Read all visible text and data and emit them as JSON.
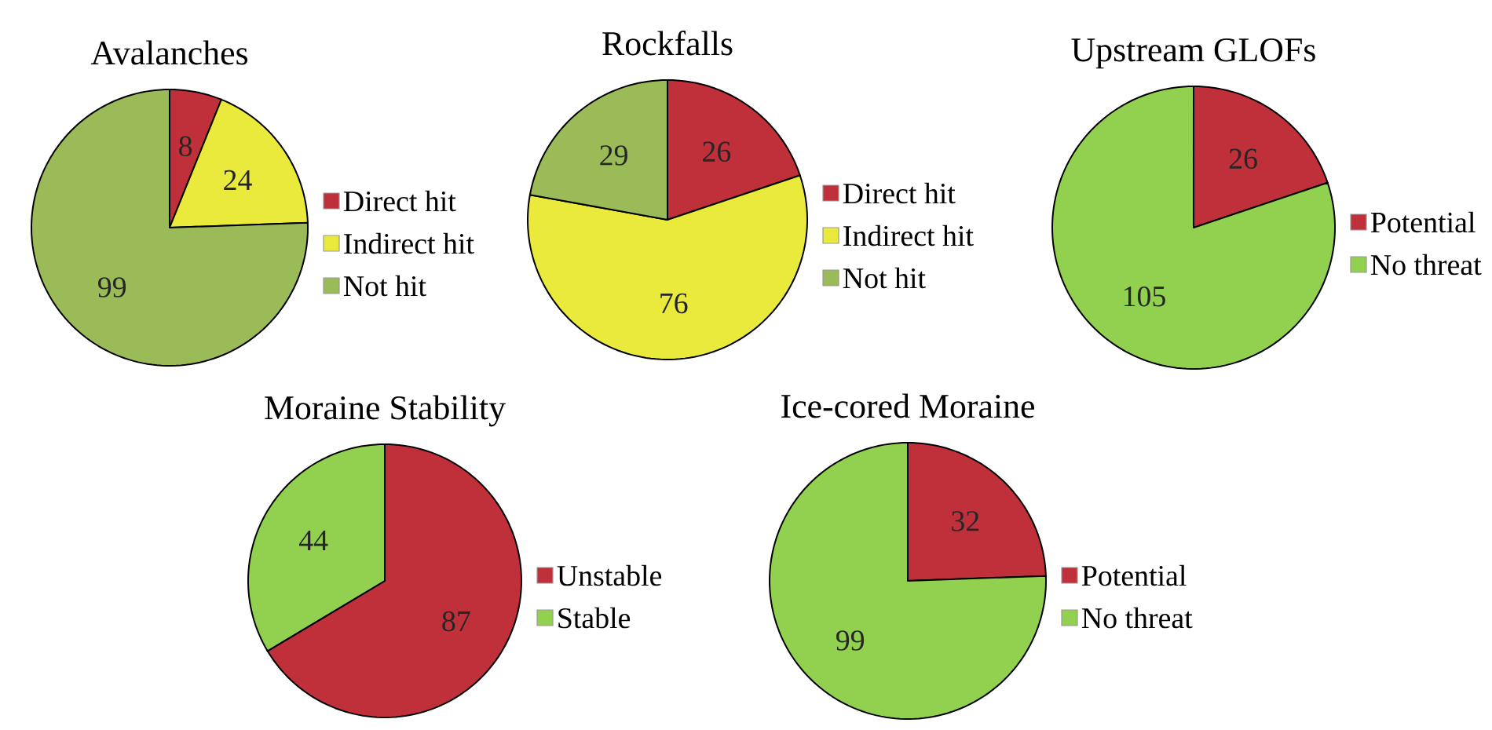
{
  "chart_data": [
    {
      "type": "pie",
      "title": "Avalanches",
      "categories": [
        "Direct hit",
        "Indirect hit",
        "Not hit"
      ],
      "values": [
        8,
        24,
        99
      ],
      "colors": [
        "#c0303a",
        "#eaea3c",
        "#9bbb59"
      ],
      "data_labels": true,
      "legend": "right"
    },
    {
      "type": "pie",
      "title": "Rockfalls",
      "categories": [
        "Direct hit",
        "Indirect hit",
        "Not hit"
      ],
      "values": [
        26,
        76,
        29
      ],
      "colors": [
        "#c0303a",
        "#eaea3c",
        "#9bbb59"
      ],
      "data_labels": true,
      "legend": "right"
    },
    {
      "type": "pie",
      "title": "Upstream GLOFs",
      "categories": [
        "Potential",
        "No threat"
      ],
      "values": [
        26,
        105
      ],
      "colors": [
        "#c0303a",
        "#92d050"
      ],
      "data_labels": true,
      "legend": "right"
    },
    {
      "type": "pie",
      "title": "Moraine Stability",
      "categories": [
        "Unstable",
        "Stable"
      ],
      "values": [
        87,
        44
      ],
      "colors": [
        "#c0303a",
        "#92d050"
      ],
      "data_labels": true,
      "legend": "right"
    },
    {
      "type": "pie",
      "title": "Ice-cored Moraine",
      "categories": [
        "Potential",
        "No threat"
      ],
      "values": [
        32,
        99
      ],
      "colors": [
        "#c0303a",
        "#92d050"
      ],
      "data_labels": true,
      "legend": "right"
    }
  ]
}
